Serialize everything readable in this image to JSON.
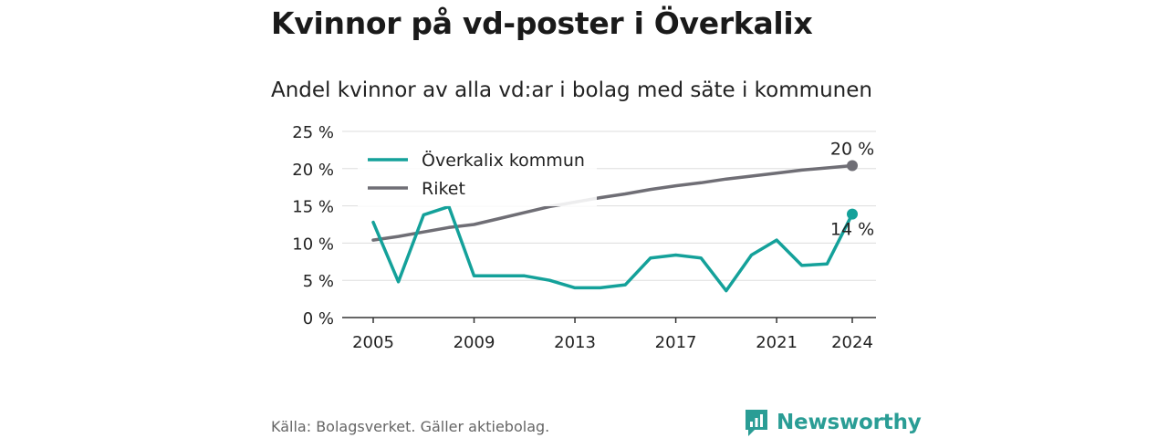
{
  "title": "Kvinnor på vd-poster i Överkalix",
  "subtitle": "Andel kvinnor av alla vd:ar i bolag med säte i kommunen",
  "source": "Källa: Bolagsverket. Gäller aktiebolag.",
  "brand": "Newsworthy",
  "colors": {
    "overkalix": "#14a19a",
    "riket": "#6f6e75",
    "grid": "#dddddd",
    "brand": "#2a9d95"
  },
  "chart_data": {
    "type": "line",
    "x": [
      2005,
      2006,
      2007,
      2008,
      2009,
      2010,
      2011,
      2012,
      2013,
      2014,
      2015,
      2016,
      2017,
      2018,
      2019,
      2020,
      2021,
      2022,
      2023,
      2024
    ],
    "series": [
      {
        "name": "Överkalix kommun",
        "values": [
          12.8,
          4.8,
          13.8,
          14.9,
          5.6,
          5.6,
          5.6,
          5.0,
          4.0,
          4.0,
          4.4,
          8.0,
          8.4,
          8.0,
          3.6,
          8.4,
          10.4,
          7.0,
          7.2,
          13.9
        ]
      },
      {
        "name": "Riket",
        "values": [
          10.4,
          10.9,
          11.5,
          12.1,
          12.5,
          13.3,
          14.1,
          14.9,
          15.5,
          16.1,
          16.6,
          17.2,
          17.7,
          18.1,
          18.6,
          19.0,
          19.4,
          19.8,
          20.1,
          20.4
        ]
      }
    ],
    "end_labels": [
      "14 %",
      "20 %"
    ],
    "xticks": [
      2005,
      2009,
      2013,
      2017,
      2021,
      2024
    ],
    "xtick_labels": [
      "2005",
      "2009",
      "2013",
      "2017",
      "2021",
      "2024"
    ],
    "yticks": [
      0,
      5,
      10,
      15,
      20,
      25
    ],
    "ytick_labels": [
      "0 %",
      "5 %",
      "10 %",
      "15 %",
      "20 %",
      "25 %"
    ],
    "ylim": [
      0,
      25
    ],
    "xlim": [
      2005,
      2024
    ],
    "grid": true,
    "legend": "top-left"
  }
}
